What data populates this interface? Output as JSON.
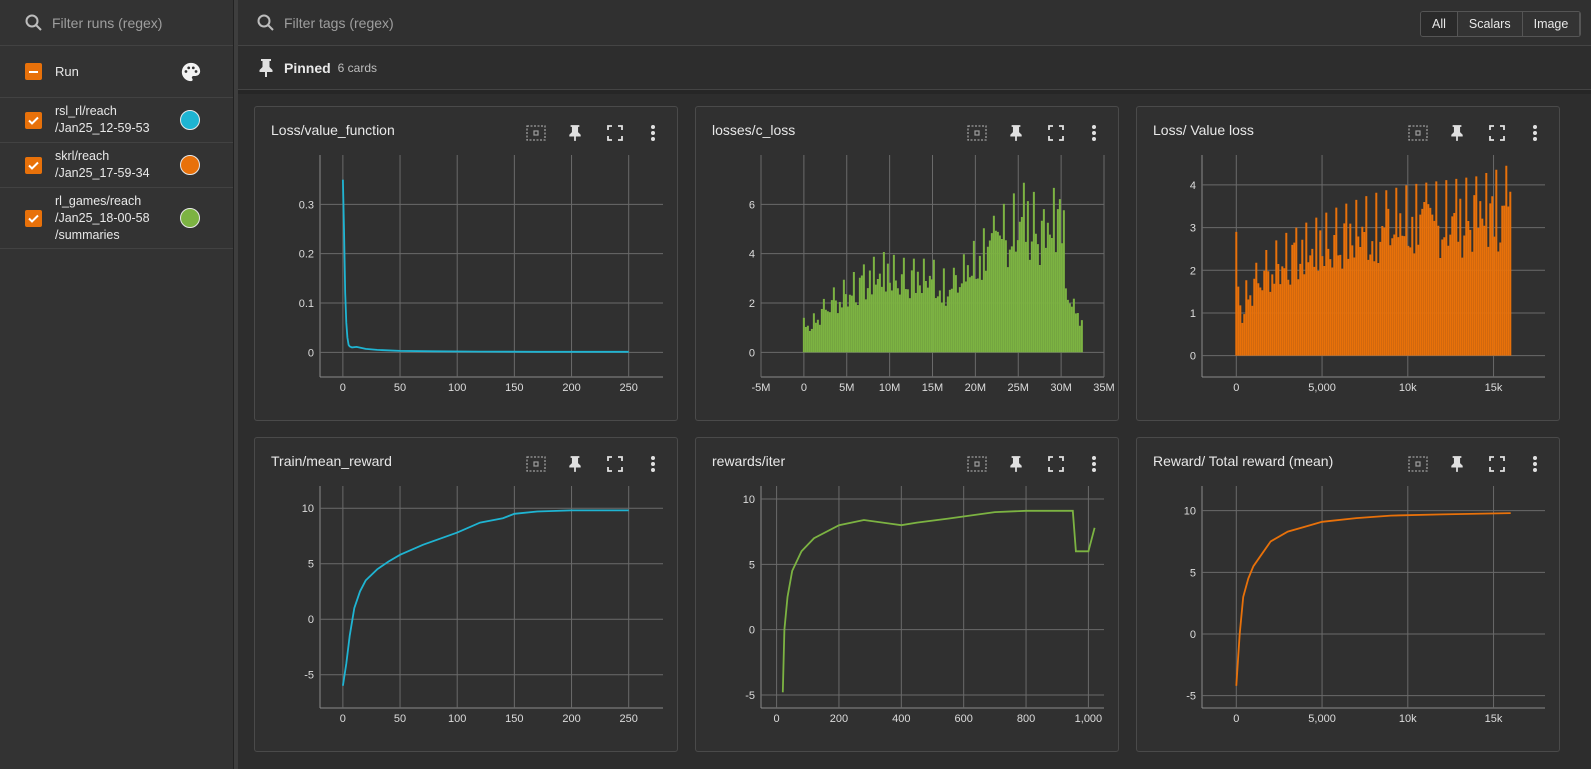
{
  "sidebar": {
    "filter_placeholder": "Filter runs (regex)",
    "header_label": "Run",
    "runs": [
      {
        "lines": [
          "rsl_rl/reach",
          "/Jan25_12-59-53"
        ],
        "color": "#1fb4d2"
      },
      {
        "lines": [
          "skrl/reach",
          "/Jan25_17-59-34"
        ],
        "color": "#e8710a"
      },
      {
        "lines": [
          "rl_games/reach",
          "/Jan25_18-00-58",
          "/summaries"
        ],
        "color": "#7cb342"
      }
    ]
  },
  "topbar": {
    "filter_placeholder": "Filter tags (regex)",
    "tabs": [
      "All",
      "Scalars",
      "Image"
    ]
  },
  "pinned": {
    "title": "Pinned",
    "count": "6 cards"
  },
  "colors": {
    "accent": "#e8710a",
    "blue": "#1fb4d2",
    "green": "#7cb342"
  },
  "chart_data": [
    {
      "title": "Loss/value_function",
      "type": "line",
      "color": "#1fb4d2",
      "xlim": [
        -20,
        280
      ],
      "ylim": [
        -0.05,
        0.4
      ],
      "xticks": [
        0,
        50,
        100,
        150,
        200,
        250
      ],
      "xtick_labels": [
        "0",
        "50",
        "100",
        "150",
        "200",
        "250"
      ],
      "yticks": [
        0,
        0.1,
        0.2,
        0.3
      ],
      "ytick_labels": [
        "0",
        "0.1",
        "0.2",
        "0.3"
      ],
      "x": [
        0,
        1,
        2,
        3,
        4,
        5,
        6,
        8,
        12,
        20,
        30,
        50,
        80,
        120,
        170,
        250
      ],
      "y": [
        0.35,
        0.25,
        0.12,
        0.06,
        0.03,
        0.015,
        0.012,
        0.01,
        0.011,
        0.007,
        0.005,
        0.003,
        0.002,
        0.0015,
        0.001,
        0.001
      ]
    },
    {
      "title": "losses/c_loss",
      "type": "bar",
      "color": "#7cb342",
      "xlim": [
        -5000000,
        35000000
      ],
      "ylim": [
        -1,
        8
      ],
      "xticks": [
        -5000000,
        0,
        5000000,
        10000000,
        15000000,
        20000000,
        25000000,
        30000000,
        35000000
      ],
      "xtick_labels": [
        "-5M",
        "0",
        "5M",
        "10M",
        "15M",
        "20M",
        "25M",
        "30M",
        "35M"
      ],
      "yticks": [
        0,
        2,
        4,
        6
      ],
      "ytick_labels": [
        "0",
        "2",
        "4",
        "6"
      ],
      "x": [
        0,
        1000000,
        3000000,
        6000000,
        9000000,
        12000000,
        15000000,
        17000000,
        20000000,
        23000000,
        26000000,
        28000000,
        30000000,
        31000000,
        32500000
      ],
      "y": [
        1.4,
        1.5,
        2.5,
        3.3,
        4.1,
        3.8,
        3.8,
        3.2,
        4.6,
        5.9,
        7.0,
        5.8,
        7.3,
        2.5,
        1.5
      ]
    },
    {
      "title": "Loss/ Value loss",
      "type": "bar",
      "color": "#e8710a",
      "xlim": [
        -2000,
        18000
      ],
      "ylim": [
        -0.5,
        4.7
      ],
      "xticks": [
        0,
        5000,
        10000,
        15000
      ],
      "xtick_labels": [
        "0",
        "5,000",
        "10k",
        "15k"
      ],
      "yticks": [
        0,
        1,
        2,
        3,
        4
      ],
      "ytick_labels": [
        "0",
        "1",
        "2",
        "3",
        "4"
      ],
      "x": [
        0,
        300,
        600,
        1200,
        2000,
        3000,
        4500,
        6000,
        8000,
        10000,
        12000,
        14000,
        15500,
        16000
      ],
      "y": [
        2.9,
        1.2,
        1.8,
        2.2,
        2.6,
        2.9,
        3.2,
        3.5,
        3.8,
        4.0,
        4.1,
        4.2,
        4.4,
        4.5
      ]
    },
    {
      "title": "Train/mean_reward",
      "type": "line",
      "color": "#1fb4d2",
      "xlim": [
        -20,
        280
      ],
      "ylim": [
        -8,
        12
      ],
      "xticks": [
        0,
        50,
        100,
        150,
        200,
        250
      ],
      "xtick_labels": [
        "0",
        "50",
        "100",
        "150",
        "200",
        "250"
      ],
      "yticks": [
        -5,
        0,
        5,
        10
      ],
      "ytick_labels": [
        "-5",
        "0",
        "5",
        "10"
      ],
      "x": [
        0,
        3,
        6,
        10,
        15,
        20,
        30,
        40,
        50,
        70,
        100,
        120,
        140,
        150,
        170,
        200,
        250
      ],
      "y": [
        -6,
        -4,
        -1.5,
        1,
        2.5,
        3.5,
        4.5,
        5.2,
        5.8,
        6.7,
        7.8,
        8.7,
        9.1,
        9.5,
        9.7,
        9.8,
        9.8
      ]
    },
    {
      "title": "rewards/iter",
      "type": "line",
      "color": "#7cb342",
      "xlim": [
        -50,
        1050
      ],
      "ylim": [
        -6,
        11
      ],
      "xticks": [
        0,
        200,
        400,
        600,
        800,
        1000
      ],
      "xtick_labels": [
        "0",
        "200",
        "400",
        "600",
        "800",
        "1,000"
      ],
      "yticks": [
        -5,
        0,
        5,
        10
      ],
      "ytick_labels": [
        "-5",
        "0",
        "5",
        "10"
      ],
      "x": [
        20,
        25,
        35,
        50,
        80,
        120,
        200,
        280,
        400,
        450,
        550,
        700,
        800,
        900,
        950,
        960,
        1000,
        1020
      ],
      "y": [
        -4.8,
        0,
        2.5,
        4.5,
        6,
        7,
        8,
        8.4,
        8.0,
        8.2,
        8.5,
        9.0,
        9.1,
        9.1,
        9.1,
        6.0,
        6.0,
        7.8
      ]
    },
    {
      "title": "Reward/ Total reward (mean)",
      "type": "line",
      "color": "#e8710a",
      "xlim": [
        -2000,
        18000
      ],
      "ylim": [
        -6,
        12
      ],
      "xticks": [
        0,
        5000,
        10000,
        15000
      ],
      "xtick_labels": [
        "0",
        "5,000",
        "10k",
        "15k"
      ],
      "yticks": [
        -5,
        0,
        5,
        10
      ],
      "ytick_labels": [
        "-5",
        "0",
        "5",
        "10"
      ],
      "x": [
        0,
        200,
        400,
        700,
        1000,
        1500,
        2000,
        3000,
        4000,
        5000,
        7000,
        9000,
        12000,
        16000
      ],
      "y": [
        -4.2,
        0,
        3,
        4.5,
        5.5,
        6.5,
        7.5,
        8.3,
        8.7,
        9.1,
        9.4,
        9.6,
        9.7,
        9.8
      ]
    }
  ]
}
